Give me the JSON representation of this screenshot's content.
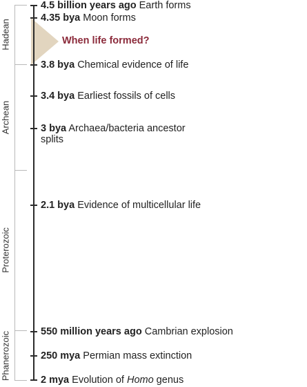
{
  "eras": [
    {
      "name": "Hadean"
    },
    {
      "name": "Archean"
    },
    {
      "name": "Proterozoic"
    },
    {
      "name": "Phanerozoic"
    }
  ],
  "events": [
    {
      "time": "4.5 billion years ago",
      "desc": "Earth forms"
    },
    {
      "time": "4.35 bya",
      "desc": "Moon forms"
    },
    {
      "time": "3.8 bya",
      "desc": "Chemical evidence of life"
    },
    {
      "time": "3.4 bya",
      "desc": "Earliest fossils of cells"
    },
    {
      "time": "3 bya",
      "desc": "Archaea/bacteria ancestor",
      "desc2": "splits"
    },
    {
      "time": "2.1 bya",
      "desc": "Evidence of multicellular life"
    },
    {
      "time": "550 million years ago",
      "desc": "Cambrian explosion"
    },
    {
      "time": "250 mya",
      "desc": "Permian mass extinction"
    },
    {
      "time": "2 mya",
      "desc": "Evolution of ",
      "desc_italic": "Homo",
      "desc_after": " genus"
    }
  ],
  "annotation": {
    "question": "When life formed?"
  },
  "colors": {
    "wedge": "#e2d5bf",
    "question": "#8b2a3a",
    "axis": "#2b2b2b",
    "era_bracket": "#b8b8b8"
  }
}
